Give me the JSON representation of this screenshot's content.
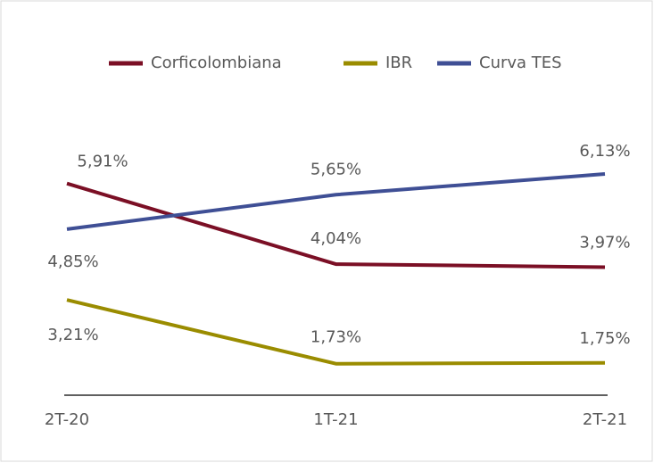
{
  "chart_data": {
    "type": "line",
    "categories": [
      "2T-20",
      "1T-21",
      "2T-21"
    ],
    "series": [
      {
        "name": "Corficolombiana",
        "color": "#7b0f25",
        "values": [
          5.91,
          4.04,
          3.97
        ],
        "value_labels": [
          "5,91%",
          "4,04%",
          "3,97%"
        ]
      },
      {
        "name": "IBR",
        "color": "#9a8c00",
        "values": [
          3.21,
          1.73,
          1.75
        ],
        "value_labels": [
          "3,21%",
          "1,73%",
          "1,75%"
        ]
      },
      {
        "name": "Curva TES",
        "color": "#3f4f95",
        "values": [
          4.85,
          5.65,
          6.13
        ],
        "value_labels": [
          "4,85%",
          "5,65%",
          "6,13%"
        ]
      }
    ],
    "ylim": [
      1,
      7
    ],
    "legend": "top"
  }
}
